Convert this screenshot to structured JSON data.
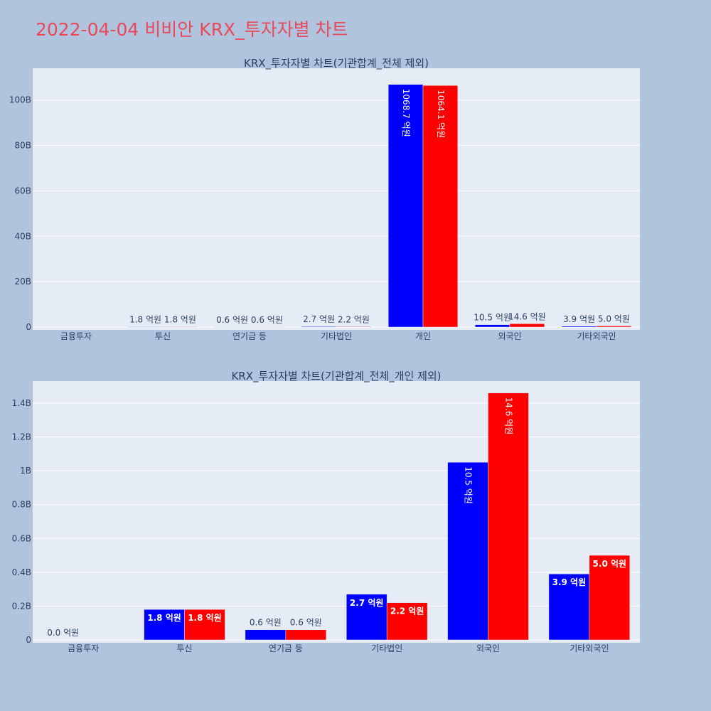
{
  "page": {
    "title": "2022-04-04 비비안 KRX_투자자별 차트"
  },
  "colors": {
    "background": "#b0c4de",
    "plot_bg": "#e5ecf6",
    "grid": "#ffffff",
    "series_1": "#0000ff",
    "series_2": "#ff0000",
    "title": "#e8495b",
    "text": "#2a3f5f"
  },
  "chart_data": [
    {
      "type": "bar",
      "title": "KRX_투자자별 차트(기관합계_전체 제외)",
      "categories": [
        "금융투자",
        "투신",
        "연기금 등",
        "기타법인",
        "개인",
        "외국인",
        "기타외국인"
      ],
      "ylim": [
        0,
        114000000000
      ],
      "yticks": [
        {
          "value": 0,
          "label": "0"
        },
        {
          "value": 20000000000,
          "label": "20B"
        },
        {
          "value": 40000000000,
          "label": "40B"
        },
        {
          "value": 60000000000,
          "label": "60B"
        },
        {
          "value": 80000000000,
          "label": "80B"
        },
        {
          "value": 100000000000,
          "label": "100B"
        }
      ],
      "grid": true,
      "series": [
        {
          "color": "#0000ff",
          "values": [
            0,
            180000000,
            60000000,
            270000000,
            106870000000,
            1050000000,
            390000000
          ],
          "labels": [
            "",
            "1.8 억원",
            "0.6 억원",
            "2.7 억원",
            "1068.7 억원",
            "10.5 억원",
            "3.9 억원"
          ]
        },
        {
          "color": "#ff0000",
          "values": [
            0,
            180000000,
            60000000,
            220000000,
            106410000000,
            1460000000,
            500000000
          ],
          "labels": [
            "",
            "1.8 억원",
            "0.6 억원",
            "2.2 억원",
            "1064.1 억원",
            "14.6 억원",
            "5.0 억원"
          ]
        }
      ]
    },
    {
      "type": "bar",
      "title": "KRX_투자자별 차트(기관합계_전체_개인 제외)",
      "categories": [
        "금융투자",
        "투신",
        "연기금 등",
        "기타법인",
        "외국인",
        "기타외국인"
      ],
      "ylim": [
        0,
        1530000000
      ],
      "yticks": [
        {
          "value": 0,
          "label": "0"
        },
        {
          "value": 200000000,
          "label": "0.2B"
        },
        {
          "value": 400000000,
          "label": "0.4B"
        },
        {
          "value": 600000000,
          "label": "0.6B"
        },
        {
          "value": 800000000,
          "label": "0.8B"
        },
        {
          "value": 1000000000,
          "label": "1B"
        },
        {
          "value": 1200000000,
          "label": "1.2B"
        },
        {
          "value": 1400000000,
          "label": "1.4B"
        }
      ],
      "grid": true,
      "series": [
        {
          "color": "#0000ff",
          "values": [
            0,
            180000000,
            60000000,
            270000000,
            1050000000,
            390000000
          ],
          "labels": [
            "0.0 억원",
            "1.8 억원",
            "0.6 억원",
            "2.7 억원",
            "10.5 억원",
            "3.9 억원"
          ]
        },
        {
          "color": "#ff0000",
          "values": [
            0,
            180000000,
            60000000,
            220000000,
            1460000000,
            500000000
          ],
          "labels": [
            "",
            "1.8 억원",
            "0.6 억원",
            "2.2 억원",
            "14.6 억원",
            "5.0 억원"
          ]
        }
      ]
    }
  ]
}
